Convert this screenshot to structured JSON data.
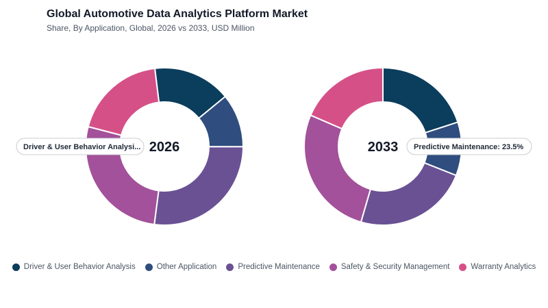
{
  "header": {
    "title": "Global Automotive Data Analytics Platform Market",
    "subtitle": "Share, By Application, Global, 2026 vs 2033, USD Million"
  },
  "colors": {
    "Driver & User Behavior Analysis": "#0b3d5c",
    "Other Application": "#2f4d7e",
    "Predictive Maintenance": "#6a5193",
    "Safety & Security Management": "#a2519a",
    "Warranty Analytics": "#d65088"
  },
  "legend": [
    "Driver & User Behavior Analysis",
    "Other Application",
    "Predictive Maintenance",
    "Safety & Security Management",
    "Warranty Analytics"
  ],
  "chart_data": [
    {
      "type": "pie",
      "center_label": "2026",
      "categories": [
        "Driver & User Behavior Analysis",
        "Other Application",
        "Predictive Maintenance",
        "Safety & Security Management",
        "Warranty Analytics"
      ],
      "values": [
        16,
        11,
        27,
        27,
        19
      ],
      "tooltip": "Driver & User Behavior Analysi..."
    },
    {
      "type": "pie",
      "center_label": "2033",
      "categories": [
        "Driver & User Behavior Analysis",
        "Other Application",
        "Predictive Maintenance",
        "Safety & Security Management",
        "Warranty Analytics"
      ],
      "values": [
        20,
        11,
        23.5,
        27,
        18.5
      ],
      "tooltip": "Predictive Maintenance: 23.5%"
    }
  ]
}
